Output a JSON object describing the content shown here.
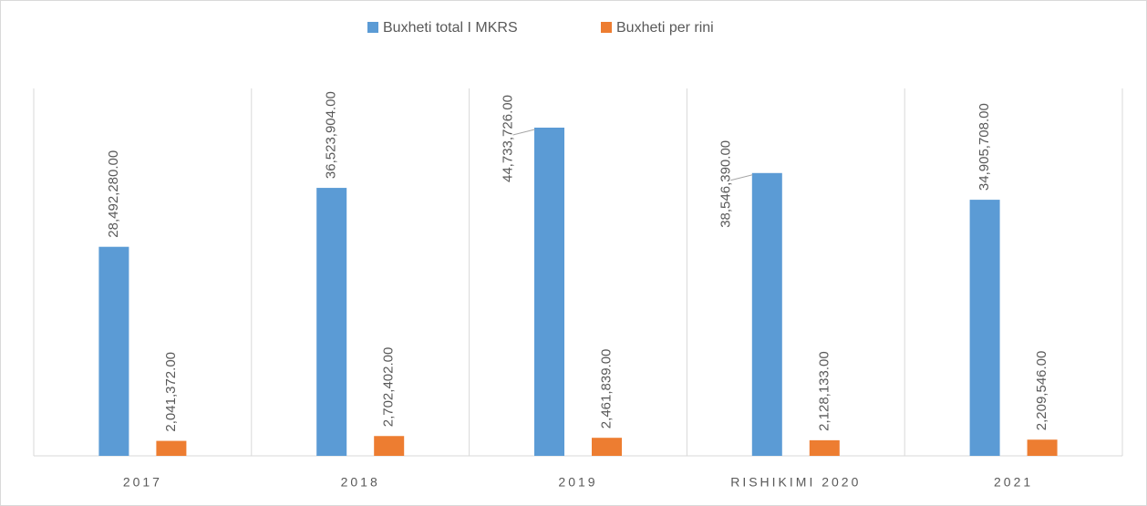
{
  "chart_data": {
    "type": "bar",
    "categories": [
      "2017",
      "2018",
      "2019",
      "RISHIKIMI 2020",
      "2021"
    ],
    "series": [
      {
        "name": "Buxheti total I MKRS",
        "color": "#5b9bd5",
        "values": [
          28492280,
          36523904,
          44733726,
          38546390,
          34905708
        ],
        "value_labels": [
          "28,492,280.00",
          "36,523,904.00",
          "44,733,726.00",
          "38,546,390.00",
          "34,905,708.00"
        ]
      },
      {
        "name": "Buxheti per rini",
        "color": "#ed7d31",
        "values": [
          2041372,
          2702402,
          2461839,
          2128133,
          2209546
        ],
        "value_labels": [
          "2,041,372.00",
          "2,702,402.00",
          "2,461,839.00",
          "2,128,133.00",
          "2,209,546.00"
        ]
      }
    ]
  }
}
